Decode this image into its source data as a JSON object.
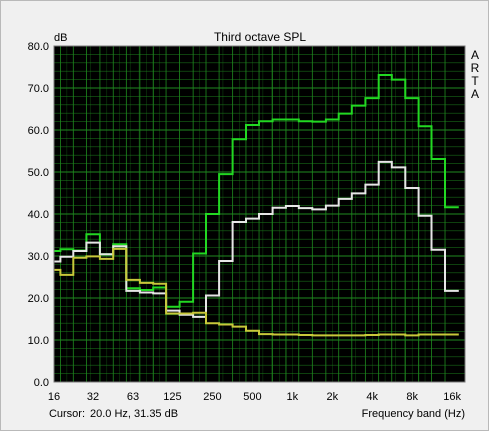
{
  "chart_data": {
    "type": "line",
    "title": "Third octave SPL",
    "ylabel": "dB",
    "xlabel": "Frequency band (Hz)",
    "side_label": [
      "A",
      "R",
      "T",
      "A"
    ],
    "cursor_label": "Cursor:",
    "cursor_value": "20.0 Hz, 31.35 dB",
    "x_scale": "log",
    "xlim": [
      16,
      20000
    ],
    "ylim": [
      0,
      80
    ],
    "y_ticks": [
      "0.0",
      "10.0",
      "20.0",
      "30.0",
      "40.0",
      "50.0",
      "60.0",
      "70.0",
      "80.0"
    ],
    "x_ticks": [
      {
        "value": 16,
        "label": "16"
      },
      {
        "value": 31.5,
        "label": "32"
      },
      {
        "value": 63,
        "label": "63"
      },
      {
        "value": 125,
        "label": "125"
      },
      {
        "value": 250,
        "label": "250"
      },
      {
        "value": 500,
        "label": "500"
      },
      {
        "value": 1000,
        "label": "1k"
      },
      {
        "value": 2000,
        "label": "2k"
      },
      {
        "value": 4000,
        "label": "4k"
      },
      {
        "value": 8000,
        "label": "8k"
      },
      {
        "value": 16000,
        "label": "16k"
      }
    ],
    "bands": [
      16,
      20,
      25,
      31.5,
      40,
      50,
      63,
      80,
      100,
      125,
      160,
      200,
      250,
      315,
      400,
      500,
      630,
      800,
      1000,
      1250,
      1600,
      2000,
      2500,
      3150,
      4000,
      5000,
      6300,
      8000,
      10000,
      12500,
      16000
    ],
    "grid": true,
    "colors": {
      "plot_bg": "#000000",
      "grid": "#1f8a1f",
      "page_bg": "#f0f0f0"
    },
    "series": [
      {
        "color": "#22d822",
        "values": [
          31.2,
          31.6,
          31.3,
          35.2,
          30.4,
          32.8,
          22.3,
          21.9,
          22.5,
          17.9,
          19.1,
          30.6,
          40.0,
          49.5,
          57.8,
          61.2,
          62.1,
          62.5,
          62.5,
          62.1,
          62.0,
          62.5,
          63.9,
          65.8,
          67.6,
          73.1,
          72.0,
          67.6,
          60.9,
          53.1,
          41.6
        ]
      },
      {
        "color": "#e6e6e6",
        "values": [
          28.7,
          29.8,
          31.2,
          33.2,
          30.4,
          32.3,
          21.7,
          21.3,
          21.1,
          17.0,
          16.0,
          15.5,
          20.6,
          28.8,
          38.1,
          38.9,
          40.0,
          41.5,
          41.9,
          41.4,
          41.1,
          42.0,
          43.6,
          44.9,
          47.0,
          52.4,
          51.1,
          46.2,
          39.6,
          31.5,
          21.7
        ]
      },
      {
        "color": "#c8c83a",
        "values": [
          26.7,
          25.5,
          29.6,
          29.9,
          29.3,
          31.7,
          24.3,
          23.6,
          23.4,
          16.3,
          16.3,
          16.5,
          14.0,
          13.7,
          13.2,
          12.2,
          11.4,
          11.3,
          11.3,
          11.2,
          11.1,
          11.1,
          11.1,
          11.1,
          11.2,
          11.3,
          11.3,
          11.1,
          11.3,
          11.3,
          11.3
        ]
      }
    ]
  }
}
